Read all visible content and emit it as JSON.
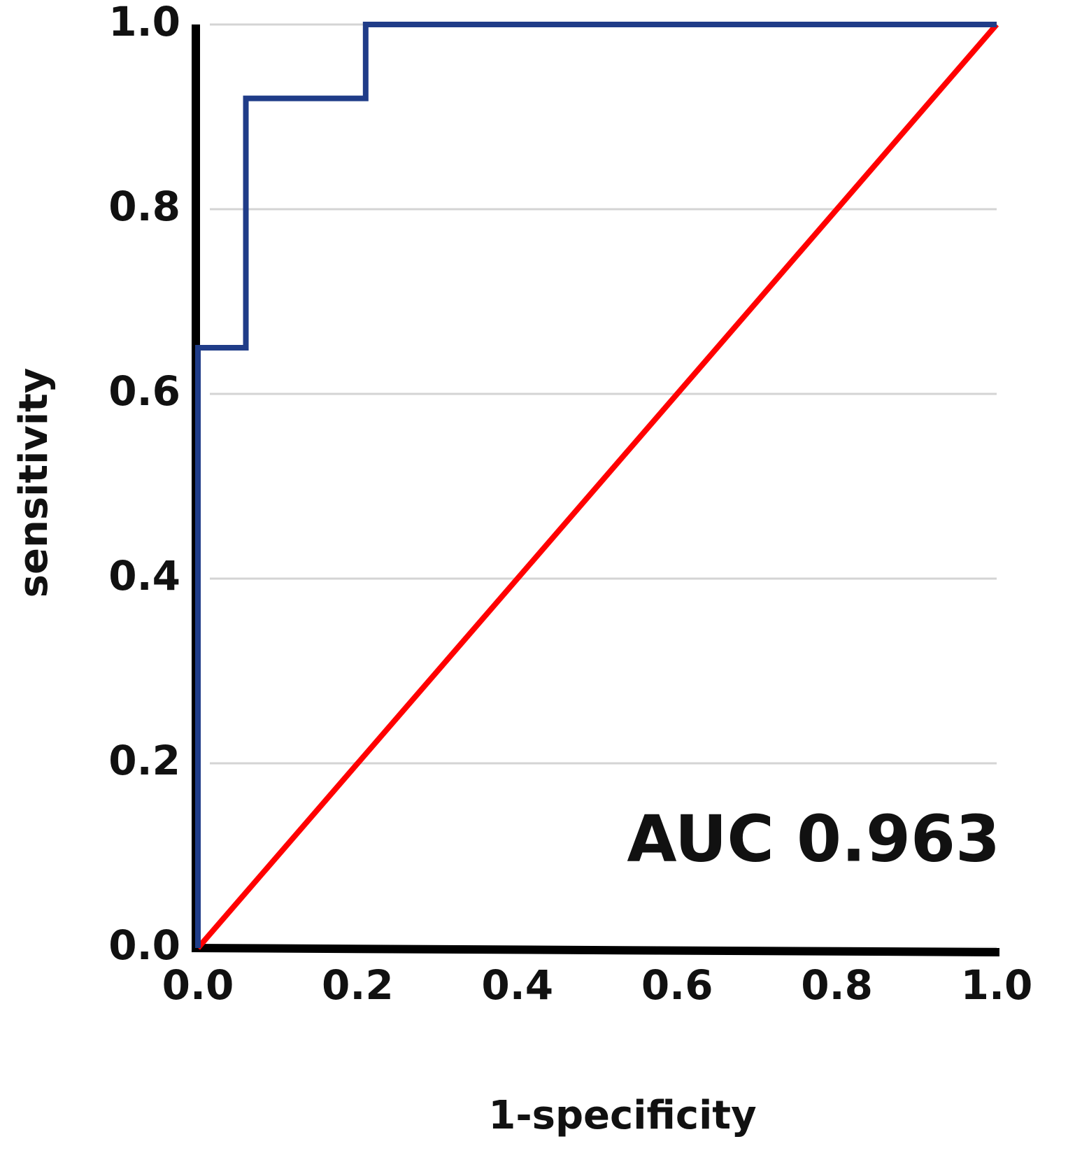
{
  "chart_data": {
    "type": "line",
    "xlabel": "1-specificity",
    "ylabel": "sensitivity",
    "annotation": "AUC 0.963",
    "series": [
      {
        "color": "#1f3c88",
        "x": [
          0,
          0,
          0.06,
          0.06,
          0.21,
          0.21,
          1
        ],
        "values": [
          0,
          0.65,
          0.65,
          0.92,
          0.92,
          1,
          1
        ]
      },
      {
        "color": "#ff0000",
        "x": [
          0,
          1
        ],
        "values": [
          0,
          1
        ]
      }
    ],
    "xlim": [
      0,
      1
    ],
    "ylim": [
      0,
      1
    ],
    "xticks": [
      {
        "value": 0,
        "label": "0.0"
      },
      0.2,
      0.4,
      0.6,
      0.8,
      {
        "value": 1,
        "label": "1.0"
      }
    ],
    "yticks": [
      {
        "value": 0,
        "label": "0.0"
      },
      0.2,
      0.4,
      0.6,
      0.8,
      {
        "value": 1,
        "label": "1.0"
      }
    ],
    "grid": true
  }
}
